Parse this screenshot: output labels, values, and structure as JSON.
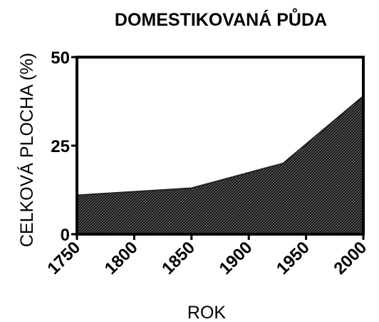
{
  "chart_data": {
    "type": "area",
    "title": "DOMESTIKOVANÁ PŮDA",
    "x_label": "ROK",
    "y_label": "CELKOVÁ PLOCHA (%)",
    "x": [
      1750,
      1800,
      1850,
      1930,
      2000
    ],
    "values": [
      11,
      12,
      13,
      20,
      39
    ],
    "color": "#222222",
    "xlim": [
      1750,
      2000
    ],
    "xticks": [
      1750,
      1800,
      1850,
      1900,
      1950,
      2000
    ],
    "ylim": [
      0,
      50
    ],
    "yticks": [
      0,
      25,
      50
    ]
  }
}
